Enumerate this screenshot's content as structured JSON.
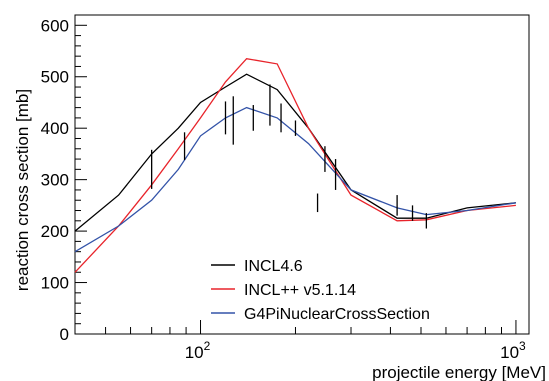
{
  "chart_data": {
    "type": "line",
    "xlabel": "projectile energy [MeV]",
    "ylabel": "reaction cross section [mb]",
    "xscale": "log",
    "xlim": [
      40,
      1100
    ],
    "ylim": [
      0,
      620
    ],
    "x_tick_labels": [
      {
        "base": "10",
        "exp": "2",
        "value": 100
      },
      {
        "base": "10",
        "exp": "3",
        "value": 1000
      }
    ],
    "y_ticks": [
      0,
      100,
      200,
      300,
      400,
      500,
      600
    ],
    "legend_position": "bottom-center",
    "series": [
      {
        "name": "INCL4.6",
        "color": "#000000",
        "points": [
          [
            40,
            200
          ],
          [
            55,
            270
          ],
          [
            70,
            350
          ],
          [
            85,
            400
          ],
          [
            100,
            450
          ],
          [
            120,
            480
          ],
          [
            140,
            505
          ],
          [
            175,
            475
          ],
          [
            220,
            400
          ],
          [
            300,
            280
          ],
          [
            420,
            225
          ],
          [
            520,
            225
          ],
          [
            700,
            245
          ],
          [
            1000,
            255
          ]
        ]
      },
      {
        "name": "INCL++ v5.1.14",
        "color": "#e8242b",
        "points": [
          [
            40,
            120
          ],
          [
            55,
            210
          ],
          [
            70,
            290
          ],
          [
            85,
            360
          ],
          [
            100,
            420
          ],
          [
            120,
            490
          ],
          [
            140,
            535
          ],
          [
            175,
            525
          ],
          [
            220,
            400
          ],
          [
            300,
            270
          ],
          [
            420,
            220
          ],
          [
            520,
            222
          ],
          [
            700,
            240
          ],
          [
            1000,
            250
          ]
        ]
      },
      {
        "name": "G4PiNuclearCrossSection",
        "color": "#3353a8",
        "points": [
          [
            40,
            160
          ],
          [
            55,
            210
          ],
          [
            70,
            260
          ],
          [
            85,
            320
          ],
          [
            100,
            385
          ],
          [
            120,
            420
          ],
          [
            140,
            440
          ],
          [
            175,
            420
          ],
          [
            220,
            370
          ],
          [
            300,
            280
          ],
          [
            420,
            245
          ],
          [
            520,
            232
          ],
          [
            700,
            240
          ],
          [
            1000,
            255
          ]
        ]
      }
    ],
    "experimental_data": [
      {
        "x": 70,
        "y": 320,
        "err": 38
      },
      {
        "x": 89,
        "y": 365,
        "err": 27
      },
      {
        "x": 120,
        "y": 420,
        "err": 32
      },
      {
        "x": 127,
        "y": 415,
        "err": 47
      },
      {
        "x": 147,
        "y": 420,
        "err": 25
      },
      {
        "x": 166,
        "y": 445,
        "err": 40
      },
      {
        "x": 180,
        "y": 420,
        "err": 28
      },
      {
        "x": 200,
        "y": 400,
        "err": 15
      },
      {
        "x": 248,
        "y": 340,
        "err": 25
      },
      {
        "x": 268,
        "y": 310,
        "err": 30
      },
      {
        "x": 235,
        "y": 255,
        "err": 18
      },
      {
        "x": 420,
        "y": 250,
        "err": 20
      },
      {
        "x": 470,
        "y": 235,
        "err": 15
      },
      {
        "x": 520,
        "y": 220,
        "err": 15
      }
    ]
  }
}
